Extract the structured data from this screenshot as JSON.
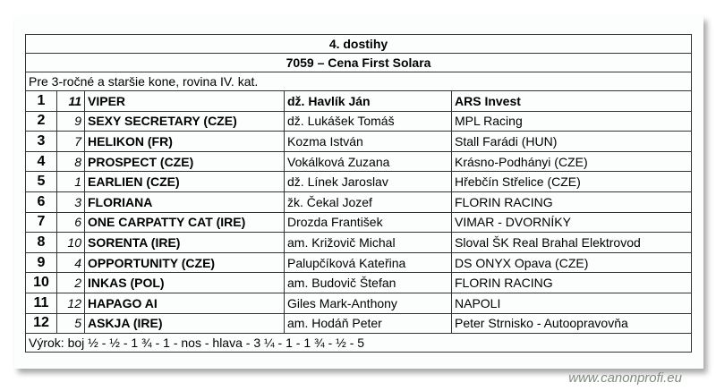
{
  "race": {
    "title": "4. dostihy",
    "name": "7059 – Cena First Solara",
    "description": "Pre 3-ročné a staršie kone, rovina IV. kat."
  },
  "results": [
    {
      "pos": "1",
      "num": "11",
      "horse": "VIPER",
      "jockey": "dž. Havlík Ján",
      "owner": "ARS Invest"
    },
    {
      "pos": "2",
      "num": "9",
      "horse": "SEXY SECRETARY (CZE)",
      "jockey": "dž. Lukášek Tomáš",
      "owner": "MPL Racing"
    },
    {
      "pos": "3",
      "num": "7",
      "horse": "HELIKON (FR)",
      "jockey": "Kozma István",
      "owner": "Stall Farádi (HUN)"
    },
    {
      "pos": "4",
      "num": "8",
      "horse": "PROSPECT (CZE)",
      "jockey": "Vokálková Zuzana",
      "owner": "Krásno-Podhányi (CZE)"
    },
    {
      "pos": "5",
      "num": "1",
      "horse": "EARLIEN (CZE)",
      "jockey": "dž. Línek Jaroslav",
      "owner": "Hřebčín Střelice (CZE)"
    },
    {
      "pos": "6",
      "num": "3",
      "horse": "FLORIANA",
      "jockey": "žk. Čekal Jozef",
      "owner": "FLORIN RACING"
    },
    {
      "pos": "7",
      "num": "6",
      "horse": "ONE CARPATTY CAT (IRE)",
      "jockey": "Drozda František",
      "owner": "VIMAR - DVORNÍKY"
    },
    {
      "pos": "8",
      "num": "10",
      "horse": "SORENTA (IRE)",
      "jockey": "am. Križovič Michal",
      "owner": "Sloval ŠK Real Brahal Elektrovod"
    },
    {
      "pos": "9",
      "num": "4",
      "horse": "OPPORTUNITY (CZE)",
      "jockey": "Palupčíková Kateřina",
      "owner": "DS ONYX Opava (CZE)"
    },
    {
      "pos": "10",
      "num": "2",
      "horse": "INKAS (POL)",
      "jockey": "am. Budovič Štefan",
      "owner": "FLORIN RACING"
    },
    {
      "pos": "11",
      "num": "12",
      "horse": "HAPAGO AI",
      "jockey": "Giles Mark-Anthony",
      "owner": "NAPOLI"
    },
    {
      "pos": "12",
      "num": "5",
      "horse": "ASKJA (IRE)",
      "jockey": "am. Hodáň Peter",
      "owner": "Peter Strnisko - Autoopravovňa"
    }
  ],
  "verdict": "Výrok: boj ½ - ½ - 1 ¾ - 1 - nos - hlava - 3 ¼ - 1 - 1 ¾ - ½ - 5",
  "watermark": "www.canonprofi.eu"
}
